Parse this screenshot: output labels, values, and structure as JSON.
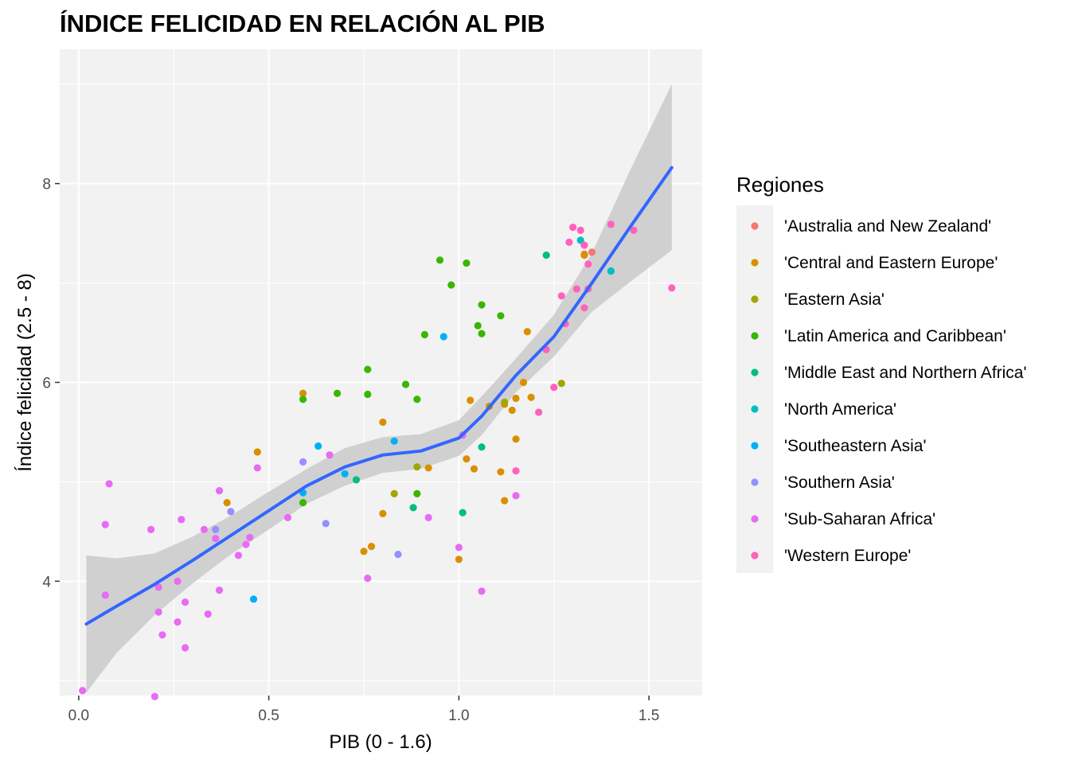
{
  "chart_data": {
    "type": "scatter",
    "title": "ÍNDICE FELICIDAD EN RELACIÓN AL PIB",
    "xlabel": "PIB (0 - 1.6)",
    "ylabel": "Índice felicidad (2.5 - 8)",
    "xlim": [
      -0.05,
      1.64
    ],
    "ylim": [
      2.85,
      9.35
    ],
    "x_ticks": [
      0.0,
      0.5,
      1.0,
      1.5
    ],
    "x_tick_labels": [
      "0.0",
      "0.5",
      "1.0",
      "1.5"
    ],
    "y_ticks": [
      4,
      6,
      8
    ],
    "y_tick_labels": [
      "4",
      "6",
      "8"
    ],
    "grid": true,
    "panel_background": "#f2f2f2",
    "legend": {
      "title": "Regiones",
      "position": "right",
      "entries": [
        {
          "name": "'Australia and New Zealand'",
          "color": "#F8766D"
        },
        {
          "name": "'Central and Eastern Europe'",
          "color": "#D89000"
        },
        {
          "name": "'Eastern Asia'",
          "color": "#A3A500"
        },
        {
          "name": "'Latin America and Caribbean'",
          "color": "#39B600"
        },
        {
          "name": "'Middle East and Northern Africa'",
          "color": "#00BF7D"
        },
        {
          "name": "'North America'",
          "color": "#00BFC4"
        },
        {
          "name": "'Southeastern Asia'",
          "color": "#00B0F6"
        },
        {
          "name": "'Southern Asia'",
          "color": "#9590FF"
        },
        {
          "name": "'Sub-Saharan Africa'",
          "color": "#E76BF3"
        },
        {
          "name": "'Western Europe'",
          "color": "#FF62BC"
        }
      ]
    },
    "series": [
      {
        "name": "'Australia and New Zealand'",
        "color": "#F8766D",
        "points": [
          [
            1.33,
            7.29
          ],
          [
            1.35,
            7.31
          ]
        ]
      },
      {
        "name": "'Central and Eastern Europe'",
        "color": "#D89000",
        "points": [
          [
            0.59,
            5.89
          ],
          [
            0.47,
            5.3
          ],
          [
            0.39,
            4.79
          ],
          [
            0.8,
            5.6
          ],
          [
            0.8,
            4.68
          ],
          [
            0.75,
            4.3
          ],
          [
            0.77,
            4.35
          ],
          [
            0.92,
            5.14
          ],
          [
            1.0,
            4.22
          ],
          [
            1.03,
            5.82
          ],
          [
            1.02,
            5.23
          ],
          [
            1.04,
            5.13
          ],
          [
            1.08,
            5.76
          ],
          [
            1.12,
            5.78
          ],
          [
            1.11,
            5.1
          ],
          [
            1.12,
            4.81
          ],
          [
            1.15,
            5.84
          ],
          [
            1.17,
            6.0
          ],
          [
            1.14,
            5.72
          ],
          [
            1.15,
            5.43
          ],
          [
            1.18,
            6.51
          ],
          [
            1.19,
            5.85
          ],
          [
            1.33,
            7.28
          ]
        ]
      },
      {
        "name": "'Eastern Asia'",
        "color": "#A3A500",
        "points": [
          [
            0.83,
            4.88
          ],
          [
            0.89,
            5.15
          ],
          [
            1.12,
            5.8
          ],
          [
            1.27,
            5.99
          ]
        ]
      },
      {
        "name": "'Latin America and Caribbean'",
        "color": "#39B600",
        "points": [
          [
            0.59,
            5.83
          ],
          [
            0.59,
            4.79
          ],
          [
            0.68,
            5.89
          ],
          [
            0.76,
            6.13
          ],
          [
            0.76,
            5.88
          ],
          [
            0.86,
            5.98
          ],
          [
            0.89,
            5.83
          ],
          [
            0.89,
            4.88
          ],
          [
            0.91,
            6.48
          ],
          [
            0.95,
            7.23
          ],
          [
            0.98,
            6.98
          ],
          [
            1.02,
            7.2
          ],
          [
            1.05,
            6.57
          ],
          [
            1.06,
            6.78
          ],
          [
            1.06,
            6.49
          ],
          [
            1.11,
            6.67
          ]
        ]
      },
      {
        "name": "'Middle East and Northern Africa'",
        "color": "#00BF7D",
        "points": [
          [
            0.73,
            5.02
          ],
          [
            0.88,
            4.74
          ],
          [
            1.01,
            4.69
          ],
          [
            1.06,
            5.35
          ],
          [
            1.23,
            7.28
          ],
          [
            1.4,
            7.12
          ]
        ]
      },
      {
        "name": "'North America'",
        "color": "#00BFC4",
        "points": [
          [
            1.32,
            7.43
          ],
          [
            1.4,
            7.12
          ]
        ]
      },
      {
        "name": "'Southeastern Asia'",
        "color": "#00B0F6",
        "points": [
          [
            0.46,
            3.82
          ],
          [
            0.59,
            4.89
          ],
          [
            0.63,
            5.36
          ],
          [
            0.7,
            5.08
          ],
          [
            0.83,
            5.41
          ],
          [
            0.96,
            6.46
          ]
        ]
      },
      {
        "name": "'Southern Asia'",
        "color": "#9590FF",
        "points": [
          [
            0.36,
            4.52
          ],
          [
            0.4,
            4.7
          ],
          [
            0.59,
            5.2
          ],
          [
            0.65,
            4.58
          ],
          [
            0.84,
            4.27
          ]
        ]
      },
      {
        "name": "'Sub-Saharan Africa'",
        "color": "#E76BF3",
        "points": [
          [
            0.01,
            2.9
          ],
          [
            0.07,
            4.57
          ],
          [
            0.07,
            3.86
          ],
          [
            0.08,
            4.98
          ],
          [
            0.19,
            4.52
          ],
          [
            0.2,
            2.84
          ],
          [
            0.21,
            3.94
          ],
          [
            0.21,
            3.69
          ],
          [
            0.22,
            3.46
          ],
          [
            0.26,
            4.0
          ],
          [
            0.26,
            3.59
          ],
          [
            0.27,
            4.62
          ],
          [
            0.28,
            3.79
          ],
          [
            0.28,
            3.33
          ],
          [
            0.33,
            4.52
          ],
          [
            0.34,
            3.67
          ],
          [
            0.36,
            4.43
          ],
          [
            0.37,
            3.91
          ],
          [
            0.37,
            4.91
          ],
          [
            0.42,
            4.26
          ],
          [
            0.44,
            4.37
          ],
          [
            0.45,
            4.44
          ],
          [
            0.47,
            5.14
          ],
          [
            0.55,
            4.64
          ],
          [
            0.66,
            5.27
          ],
          [
            0.76,
            4.03
          ],
          [
            0.92,
            4.64
          ],
          [
            1.0,
            4.34
          ],
          [
            1.01,
            5.47
          ],
          [
            1.06,
            3.9
          ],
          [
            1.15,
            4.86
          ]
        ]
      },
      {
        "name": "'Western Europe'",
        "color": "#FF62BC",
        "points": [
          [
            1.15,
            5.11
          ],
          [
            1.21,
            5.7
          ],
          [
            1.23,
            6.33
          ],
          [
            1.25,
            5.95
          ],
          [
            1.27,
            6.87
          ],
          [
            1.28,
            6.59
          ],
          [
            1.29,
            7.41
          ],
          [
            1.3,
            7.56
          ],
          [
            1.31,
            6.94
          ],
          [
            1.32,
            7.53
          ],
          [
            1.33,
            7.38
          ],
          [
            1.33,
            6.75
          ],
          [
            1.34,
            7.19
          ],
          [
            1.34,
            6.94
          ],
          [
            1.4,
            7.59
          ],
          [
            1.46,
            7.53
          ],
          [
            1.56,
            6.95
          ]
        ]
      }
    ],
    "smooth": {
      "method": "loess",
      "color": "#3366FF",
      "ribbon_color": "#cccccc",
      "points": [
        [
          0.02,
          3.57
        ],
        [
          0.1,
          3.75
        ],
        [
          0.2,
          3.97
        ],
        [
          0.3,
          4.21
        ],
        [
          0.4,
          4.46
        ],
        [
          0.5,
          4.71
        ],
        [
          0.6,
          4.96
        ],
        [
          0.7,
          5.15
        ],
        [
          0.8,
          5.27
        ],
        [
          0.9,
          5.31
        ],
        [
          1.0,
          5.44
        ],
        [
          1.06,
          5.66
        ],
        [
          1.15,
          6.07
        ],
        [
          1.25,
          6.46
        ],
        [
          1.35,
          7.0
        ],
        [
          1.45,
          7.56
        ],
        [
          1.56,
          8.16
        ]
      ],
      "upper": [
        [
          0.02,
          4.26
        ],
        [
          0.1,
          4.23
        ],
        [
          0.2,
          4.28
        ],
        [
          0.3,
          4.45
        ],
        [
          0.4,
          4.66
        ],
        [
          0.5,
          4.9
        ],
        [
          0.6,
          5.13
        ],
        [
          0.7,
          5.34
        ],
        [
          0.8,
          5.45
        ],
        [
          0.9,
          5.48
        ],
        [
          1.0,
          5.62
        ],
        [
          1.06,
          5.86
        ],
        [
          1.15,
          6.24
        ],
        [
          1.25,
          6.68
        ],
        [
          1.35,
          7.3
        ],
        [
          1.45,
          8.13
        ],
        [
          1.56,
          9.0
        ]
      ],
      "lower": [
        [
          0.02,
          2.88
        ],
        [
          0.1,
          3.28
        ],
        [
          0.2,
          3.66
        ],
        [
          0.3,
          3.98
        ],
        [
          0.4,
          4.27
        ],
        [
          0.5,
          4.52
        ],
        [
          0.6,
          4.78
        ],
        [
          0.7,
          4.96
        ],
        [
          0.8,
          5.09
        ],
        [
          0.9,
          5.13
        ],
        [
          1.0,
          5.26
        ],
        [
          1.06,
          5.47
        ],
        [
          1.15,
          5.9
        ],
        [
          1.25,
          6.26
        ],
        [
          1.35,
          6.71
        ],
        [
          1.45,
          7.01
        ],
        [
          1.56,
          7.33
        ]
      ]
    }
  }
}
